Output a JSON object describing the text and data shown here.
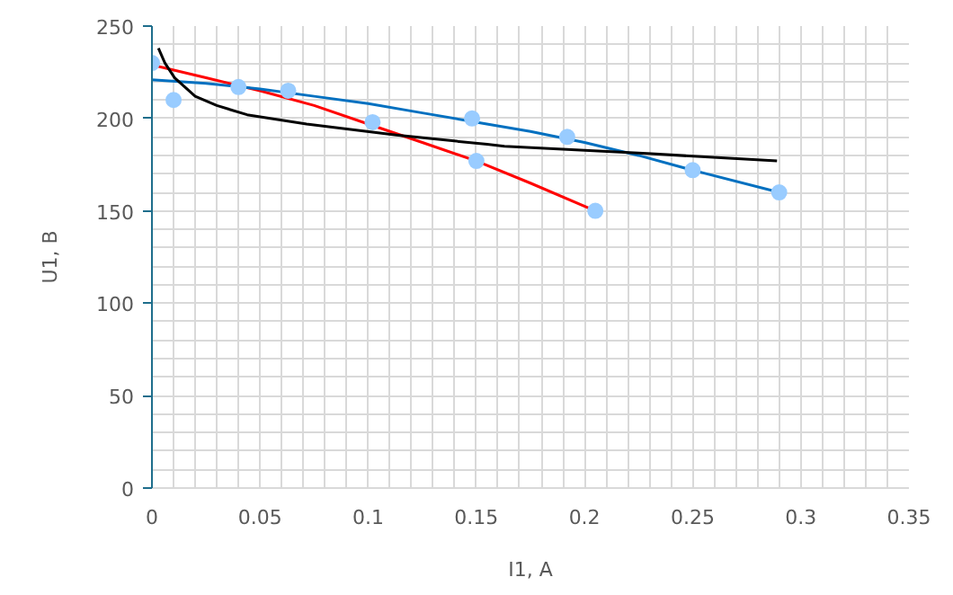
{
  "chart_data": {
    "type": "line",
    "xlabel": "I1, A",
    "ylabel": "U1, B",
    "xlim": [
      0,
      0.35
    ],
    "ylim": [
      0,
      250
    ],
    "xticks": [
      0,
      0.05,
      0.1,
      0.15,
      0.2,
      0.25,
      0.3,
      0.35
    ],
    "yticks": [
      0,
      50,
      100,
      150,
      200,
      250
    ],
    "grid": true,
    "series": [
      {
        "color": "#ff0000",
        "marker": "none",
        "x": [
          0,
          0.025,
          0.05,
          0.075,
          0.1,
          0.125,
          0.15,
          0.175,
          0.205
        ],
        "values": [
          229,
          222,
          215,
          207,
          197,
          187,
          177,
          165,
          150
        ]
      },
      {
        "color": "#0070c0",
        "marker": "none",
        "x": [
          0,
          0.025,
          0.05,
          0.075,
          0.1,
          0.125,
          0.15,
          0.175,
          0.2,
          0.225,
          0.25,
          0.29
        ],
        "values": [
          221,
          219,
          216,
          212,
          208,
          203,
          198,
          193,
          187,
          180,
          172,
          160
        ]
      },
      {
        "color": "#000000",
        "marker": "none",
        "x": [
          0.003,
          0.006,
          0.0105,
          0.02,
          0.03,
          0.044,
          0.0715,
          0.113,
          0.155,
          0.163,
          0.229,
          0.289
        ],
        "values": [
          238,
          230,
          222,
          212,
          207,
          202,
          197,
          191,
          186,
          185,
          181,
          177
        ]
      },
      {
        "type": "scatter",
        "color": "#99ccff",
        "marker": "circle",
        "x": [
          0,
          0.01,
          0.04,
          0.063,
          0.102,
          0.148,
          0.15,
          0.192,
          0.205,
          0.25,
          0.29
        ],
        "values": [
          230,
          210,
          217,
          215,
          198,
          200,
          177,
          190,
          150,
          172,
          160
        ]
      }
    ]
  }
}
